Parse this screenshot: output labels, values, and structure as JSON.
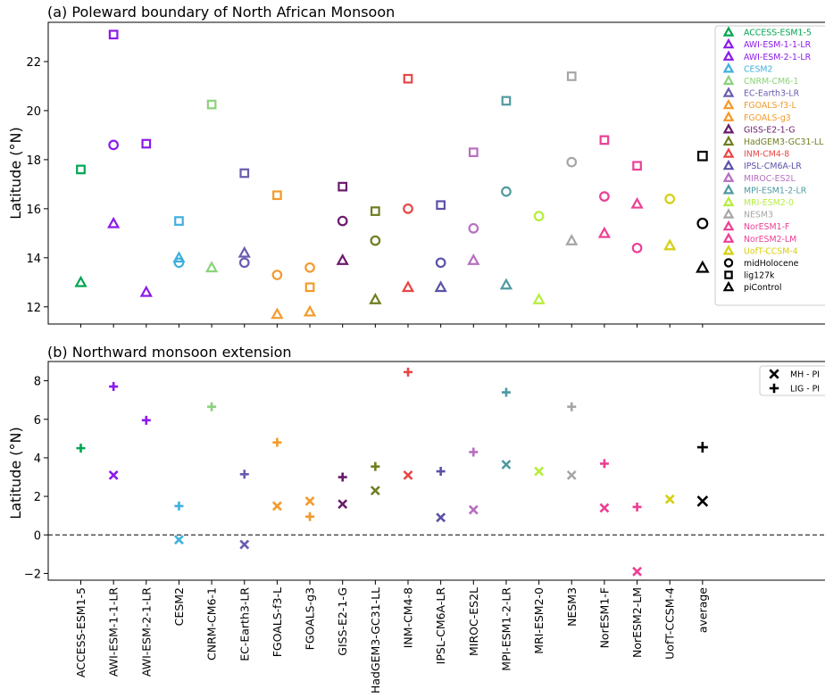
{
  "chart_data": [
    {
      "type": "scatter",
      "title": "(a) Poleward boundary of North African Monsoon",
      "ylabel": "Latitude (°N)",
      "ylim": [
        11.3,
        23.6
      ],
      "yticks": [
        12,
        14,
        16,
        18,
        20,
        22
      ],
      "grid": false,
      "legend_position": "right",
      "categories": [
        "ACCESS-ESM1-5",
        "AWI-ESM-1-1-LR",
        "AWI-ESM-2-1-LR",
        "CESM2",
        "CNRM-CM6-1",
        "EC-Earth3-LR",
        "FGOALS-f3-L",
        "FGOALS-g3",
        "GISS-E2-1-G",
        "HadGEM3-GC31-LL",
        "INM-CM4-8",
        "IPSL-CM6A-LR",
        "MIROC-ES2L",
        "MPI-ESM1-2-LR",
        "MRI-ESM2-0",
        "NESM3",
        "NorESM1-F",
        "NorESM2-LM",
        "UofT-CCSM-4",
        "average"
      ],
      "model_colors": [
        "#00a651",
        "#8b1aeb",
        "#8b1aeb",
        "#3fb0de",
        "#8bd27a",
        "#6b5bb0",
        "#f39a2a",
        "#f39a2a",
        "#6a1b6b",
        "#6f7d1f",
        "#e84545",
        "#5a52a8",
        "#b76fc0",
        "#4f9aa0",
        "#b5ee3d",
        "#a6a6a6",
        "#ec3f94",
        "#ec3f94",
        "#d6cf10",
        "#000000"
      ],
      "series": [
        {
          "name": "midHolocene",
          "marker": "circle",
          "values": [
            null,
            18.6,
            null,
            13.8,
            null,
            13.8,
            13.3,
            13.6,
            15.5,
            14.7,
            16.0,
            13.8,
            15.2,
            16.7,
            15.7,
            17.9,
            16.5,
            14.4,
            16.4,
            15.4
          ]
        },
        {
          "name": "lig127k",
          "marker": "square",
          "values": [
            17.6,
            23.1,
            18.65,
            15.5,
            20.25,
            17.45,
            16.55,
            12.8,
            16.9,
            15.9,
            21.3,
            16.15,
            18.3,
            20.4,
            null,
            21.4,
            18.8,
            17.75,
            null,
            18.15
          ]
        },
        {
          "name": "piControl",
          "marker": "triangle",
          "values": [
            13.0,
            15.4,
            12.6,
            14.0,
            13.6,
            14.2,
            11.7,
            11.8,
            13.9,
            12.3,
            12.8,
            12.8,
            13.9,
            12.9,
            12.3,
            14.7,
            15.0,
            16.2,
            14.5,
            13.6
          ]
        }
      ],
      "legend_entries": [
        "ACCESS-ESM1-5",
        "AWI-ESM-1-1-LR",
        "AWI-ESM-2-1-LR",
        "CESM2",
        "CNRM-CM6-1",
        "EC-Earth3-LR",
        "FGOALS-f3-L",
        "FGOALS-g3",
        "GISS-E2-1-G",
        "HadGEM3-GC31-LL",
        "INM-CM4-8",
        "IPSL-CM6A-LR",
        "MIROC-ES2L",
        "MPI-ESM1-2-LR",
        "MRI-ESM2-0",
        "NESM3",
        "NorESM1-F",
        "NorESM2-LM",
        "UofT-CCSM-4",
        "midHolocene",
        "lig127k",
        "piControl"
      ]
    },
    {
      "type": "scatter",
      "title": "(b) Northward monsoon extension",
      "ylabel": "Latitude (°N)",
      "ylim": [
        -2.35,
        9.0
      ],
      "yticks": [
        -2,
        0,
        2,
        4,
        6,
        8
      ],
      "reference_line": 0,
      "grid": false,
      "legend_position": "top-right",
      "series": [
        {
          "name": "MH - PI",
          "marker": "x",
          "values": [
            null,
            3.1,
            null,
            -0.25,
            null,
            -0.5,
            1.5,
            1.75,
            1.6,
            2.3,
            3.1,
            0.9,
            1.3,
            3.65,
            3.3,
            3.1,
            1.4,
            -1.9,
            1.85,
            1.75
          ]
        },
        {
          "name": "LIG - PI",
          "marker": "plus",
          "values": [
            4.5,
            7.7,
            5.95,
            1.5,
            6.65,
            3.15,
            4.8,
            0.95,
            3.0,
            3.55,
            8.45,
            3.3,
            4.3,
            7.4,
            null,
            6.65,
            3.7,
            1.45,
            null,
            4.55
          ]
        }
      ]
    }
  ]
}
